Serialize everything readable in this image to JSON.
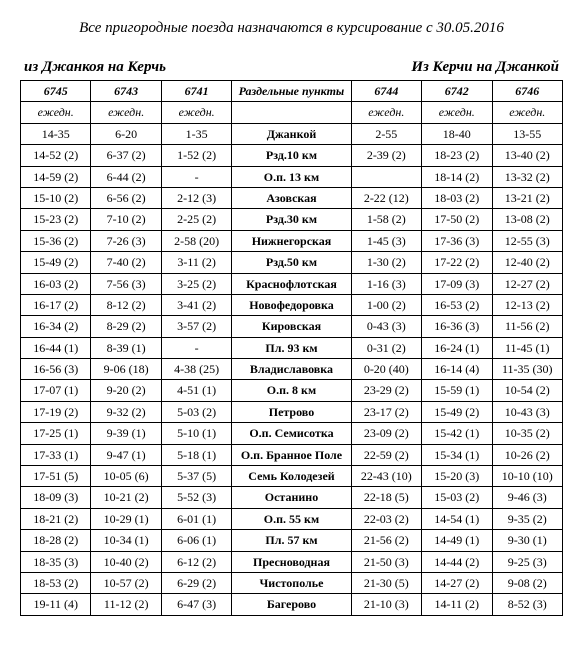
{
  "title": "Все пригородные поезда назначаются в курсирование с 30.05.2016",
  "left_heading": "из Джанкоя на Керчь",
  "right_heading": "Из Керчи на Джанкой",
  "columns": [
    "6745",
    "6743",
    "6741",
    "Раздельные пункты",
    "6744",
    "6742",
    "6746"
  ],
  "row2": [
    "ежедн.",
    "ежедн.",
    "ежедн.",
    "",
    "ежедн.",
    "ежедн.",
    "ежедн."
  ],
  "rows": [
    [
      "14-35",
      "6-20",
      "1-35",
      "Джанкой",
      "2-55",
      "18-40",
      "13-55"
    ],
    [
      "14-52  (2)",
      "6-37  (2)",
      "1-52  (2)",
      "Рзд.10 км",
      "2-39  (2)",
      "18-23 (2)",
      "13-40 (2)"
    ],
    [
      "14-59  (2)",
      "6-44  (2)",
      "-",
      "О.п. 13 км",
      "",
      "18-14 (2)",
      "13-32 (2)"
    ],
    [
      "15-10  (2)",
      "6-56  (2)",
      "2-12  (3)",
      "Азовская",
      "2-22  (12)",
      "18-03 (2)",
      "13-21 (2)"
    ],
    [
      "15-23  (2)",
      "7-10  (2)",
      "2-25  (2)",
      "Рзд.30 км",
      "1-58  (2)",
      "17-50 (2)",
      "13-08 (2)"
    ],
    [
      "15-36  (2)",
      "7-26  (3)",
      "2-58  (20)",
      "Нижнегорская",
      "1-45  (3)",
      "17-36 (3)",
      "12-55 (3)"
    ],
    [
      "15-49  (2)",
      "7-40  (2)",
      "3-11  (2)",
      "Рзд.50 км",
      "1-30  (2)",
      "17-22 (2)",
      "12-40 (2)"
    ],
    [
      "16-03  (2)",
      "7-56  (3)",
      "3-25  (2)",
      "Краснофлотская",
      "1-16  (3)",
      "17-09 (3)",
      "12-27 (2)"
    ],
    [
      "16-17  (2)",
      "8-12  (2)",
      "3-41  (2)",
      "Новофедоровка",
      "1-00   (2)",
      "16-53 (2)",
      "12-13 (2)"
    ],
    [
      "16-34  (2)",
      "8-29  (2)",
      "3-57  (2)",
      "Кировская",
      "0-43   (3)",
      "16-36 (3)",
      "11-56 (2)"
    ],
    [
      "16-44  (1)",
      "8-39  (1)",
      "-",
      "Пл. 93 км",
      "0-31   (2)",
      "16-24 (1)",
      "11-45 (1)"
    ],
    [
      "16-56  (3)",
      "9-06 (18)",
      "4-38 (25)",
      "Владиславовка",
      "0-20 (40)",
      "16-14 (4)",
      "11-35 (30)"
    ],
    [
      "17-07  (1)",
      "9-20  (2)",
      "4-51  (1)",
      "О.п. 8 км",
      "23-29  (2)",
      "15-59 (1)",
      "10-54 (2)"
    ],
    [
      "17-19  (2)",
      "9-32  (2)",
      "5-03  (2)",
      "Петрово",
      "23-17  (2)",
      "15-49 (2)",
      "10-43 (3)"
    ],
    [
      "17-25  (1)",
      "9-39  (1)",
      "5-10  (1)",
      "О.п. Семисотка",
      "23-09  (2)",
      "15-42 (1)",
      "10-35 (2)"
    ],
    [
      "17-33  (1)",
      "9-47  (1)",
      "5-18  (1)",
      "О.п. Бранное Поле",
      "22-59  (2)",
      "15-34 (1)",
      "10-26 (2)"
    ],
    [
      "17-51  (5)",
      "10-05 (6)",
      "5-37  (5)",
      "Семь Колодезей",
      "22-43 (10)",
      "15-20 (3)",
      "10-10 (10)"
    ],
    [
      "18-09  (3)",
      "10-21 (2)",
      "5-52  (3)",
      "Останино",
      "22-18 (5)",
      "15-03 (2)",
      "9-46 (3)"
    ],
    [
      "18-21  (2)",
      "10-29 (1)",
      "6-01  (1)",
      "О.п.  55 км",
      "22-03 (2)",
      "14-54 (1)",
      "9-35 (2)"
    ],
    [
      "18-28  (2)",
      "10-34 (1)",
      "6-06 (1)",
      "Пл. 57 км",
      "21-56 (2)",
      "14-49 (1)",
      "9-30 (1)"
    ],
    [
      "18-35  (3)",
      "10-40 (2)",
      "6-12 (2)",
      "Пресноводная",
      "21-50 (3)",
      "14-44 (2)",
      "9-25 (3)"
    ],
    [
      "18-53  (2)",
      "10-57 (2)",
      "6-29  (2)",
      "Чистополье",
      "21-30 (5)",
      "14-27 (2)",
      "9-08 (2)"
    ],
    [
      "19-11  (4)",
      "11-12 (2)",
      "6-47  (3)",
      "Багерово",
      "21-10 (3)",
      "14-11 (2)",
      "8-52 (3)"
    ]
  ]
}
